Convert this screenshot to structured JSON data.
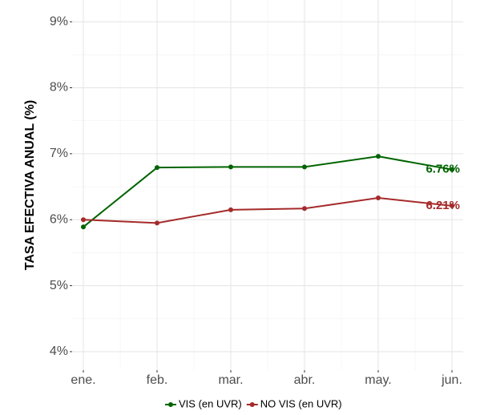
{
  "chart_data": {
    "type": "line",
    "y_label": "TASA EFECTIVA ANUAL (%)",
    "categories": [
      "ene.",
      "feb.",
      "mar.",
      "abr.",
      "may.",
      "jun."
    ],
    "series": [
      {
        "name": "VIS (en UVR)",
        "color": "#006400",
        "values": [
          5.89,
          6.79,
          6.8,
          6.8,
          6.96,
          6.76
        ],
        "value_labels": [
          null,
          null,
          null,
          null,
          null,
          "6.76%"
        ]
      },
      {
        "name": "NO VIS (en UVR)",
        "color": "#a52a2a",
        "values": [
          6.0,
          5.95,
          6.15,
          6.17,
          6.33,
          6.21
        ],
        "value_labels": [
          null,
          null,
          null,
          null,
          null,
          "6.21%"
        ]
      }
    ],
    "ylim": [
      3.72,
      9.33
    ],
    "yticks": [
      {
        "value": 4,
        "label": "4%"
      },
      {
        "value": 5,
        "label": "5%"
      },
      {
        "value": 6,
        "label": "6%"
      },
      {
        "value": 7,
        "label": "7%"
      },
      {
        "value": 8,
        "label": "8%"
      },
      {
        "value": 9,
        "label": "9%"
      }
    ],
    "grid": true,
    "legend_position": "bottom"
  }
}
